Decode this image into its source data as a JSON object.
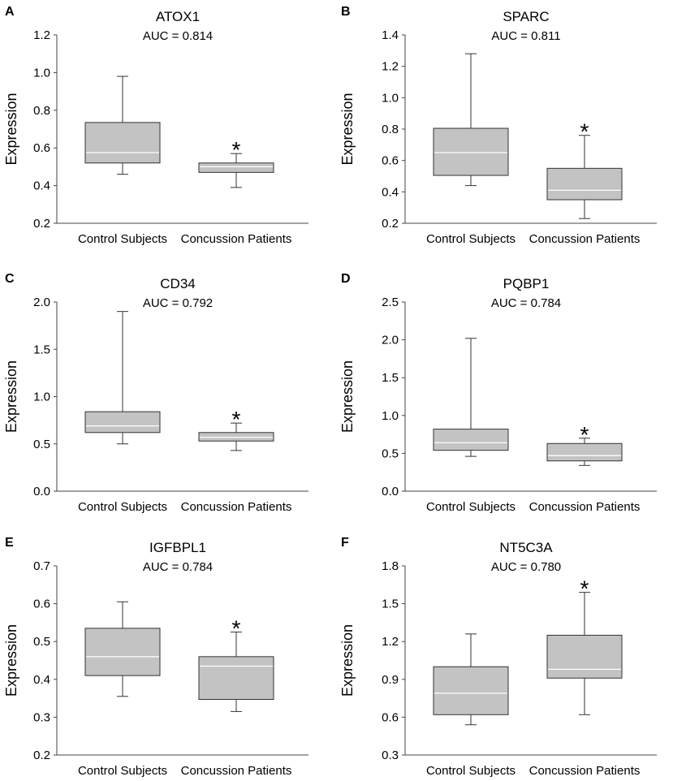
{
  "chart_data": [
    {
      "type": "box",
      "panel": "A",
      "title": "ATOX1",
      "annotation": "AUC = 0.814",
      "ylabel": "Expression",
      "ylim": [
        0.2,
        1.2
      ],
      "yticks": [
        0.2,
        0.4,
        0.6,
        0.8,
        1.0,
        1.2
      ],
      "ytick_labels": [
        "0.2",
        "0.4",
        "0.6",
        "0.8",
        "1.0",
        "1.2"
      ],
      "categories": [
        "Control Subjects",
        "Concussion Patients"
      ],
      "boxes": [
        {
          "min": 0.46,
          "q1": 0.52,
          "median": 0.575,
          "q3": 0.735,
          "max": 0.98,
          "marker": ""
        },
        {
          "min": 0.39,
          "q1": 0.47,
          "median": 0.5,
          "q3": 0.52,
          "max": 0.57,
          "marker": "*"
        }
      ]
    },
    {
      "type": "box",
      "panel": "B",
      "title": "SPARC",
      "annotation": "AUC = 0.811",
      "ylabel": "Expression",
      "ylim": [
        0.2,
        1.4
      ],
      "yticks": [
        0.2,
        0.4,
        0.6,
        0.8,
        1.0,
        1.2,
        1.4
      ],
      "ytick_labels": [
        "0.2",
        "0.4",
        "0.6",
        "0.8",
        "1.0",
        "1.2",
        "1.4"
      ],
      "categories": [
        "Control Subjects",
        "Concussion Patients"
      ],
      "boxes": [
        {
          "min": 0.44,
          "q1": 0.505,
          "median": 0.65,
          "q3": 0.805,
          "max": 1.28,
          "marker": ""
        },
        {
          "min": 0.23,
          "q1": 0.35,
          "median": 0.41,
          "q3": 0.55,
          "max": 0.76,
          "marker": "*"
        }
      ]
    },
    {
      "type": "box",
      "panel": "C",
      "title": "CD34",
      "annotation": "AUC = 0.792",
      "ylabel": "Expression",
      "ylim": [
        0.0,
        2.0
      ],
      "yticks": [
        0.0,
        0.5,
        1.0,
        1.5,
        2.0
      ],
      "ytick_labels": [
        "0.0",
        "0.5",
        "1.0",
        "1.5",
        "2.0"
      ],
      "categories": [
        "Control Subjects",
        "Concussion Patients"
      ],
      "boxes": [
        {
          "min": 0.5,
          "q1": 0.62,
          "median": 0.69,
          "q3": 0.84,
          "max": 1.9,
          "marker": ""
        },
        {
          "min": 0.43,
          "q1": 0.53,
          "median": 0.57,
          "q3": 0.62,
          "max": 0.72,
          "marker": "*"
        }
      ]
    },
    {
      "type": "box",
      "panel": "D",
      "title": "PQBP1",
      "annotation": "AUC = 0.784",
      "ylabel": "Expression",
      "ylim": [
        0.0,
        2.5
      ],
      "yticks": [
        0.0,
        0.5,
        1.0,
        1.5,
        2.0,
        2.5
      ],
      "ytick_labels": [
        "0.0",
        "0.5",
        "1.0",
        "1.5",
        "2.0",
        "2.5"
      ],
      "categories": [
        "Control Subjects",
        "Concussion Patients"
      ],
      "boxes": [
        {
          "min": 0.46,
          "q1": 0.54,
          "median": 0.64,
          "q3": 0.82,
          "max": 2.02,
          "marker": ""
        },
        {
          "min": 0.34,
          "q1": 0.4,
          "median": 0.47,
          "q3": 0.63,
          "max": 0.7,
          "marker": "*"
        }
      ]
    },
    {
      "type": "box",
      "panel": "E",
      "title": "IGFBPL1",
      "annotation": "AUC = 0.784",
      "ylabel": "Expression",
      "ylim": [
        0.2,
        0.7
      ],
      "yticks": [
        0.2,
        0.3,
        0.4,
        0.5,
        0.6,
        0.7
      ],
      "ytick_labels": [
        "0.2",
        "0.3",
        "0.4",
        "0.5",
        "0.6",
        "0.7"
      ],
      "categories": [
        "Control Subjects",
        "Concussion Patients"
      ],
      "boxes": [
        {
          "min": 0.355,
          "q1": 0.41,
          "median": 0.46,
          "q3": 0.535,
          "max": 0.605,
          "marker": ""
        },
        {
          "min": 0.315,
          "q1": 0.347,
          "median": 0.435,
          "q3": 0.46,
          "max": 0.525,
          "marker": "*"
        }
      ]
    },
    {
      "type": "box",
      "panel": "F",
      "title": "NT5C3A",
      "annotation": "AUC = 0.780",
      "ylabel": "Expression",
      "ylim": [
        0.3,
        1.8
      ],
      "yticks": [
        0.3,
        0.6,
        0.9,
        1.2,
        1.5,
        1.8
      ],
      "ytick_labels": [
        "0.3",
        "0.6",
        "0.9",
        "1.2",
        "1.5",
        "1.8"
      ],
      "categories": [
        "Control Subjects",
        "Concussion Patients"
      ],
      "boxes": [
        {
          "min": 0.54,
          "q1": 0.62,
          "median": 0.79,
          "q3": 1.0,
          "max": 1.26,
          "marker": ""
        },
        {
          "min": 0.62,
          "q1": 0.91,
          "median": 0.98,
          "q3": 1.25,
          "max": 1.59,
          "marker": "*"
        }
      ]
    }
  ]
}
